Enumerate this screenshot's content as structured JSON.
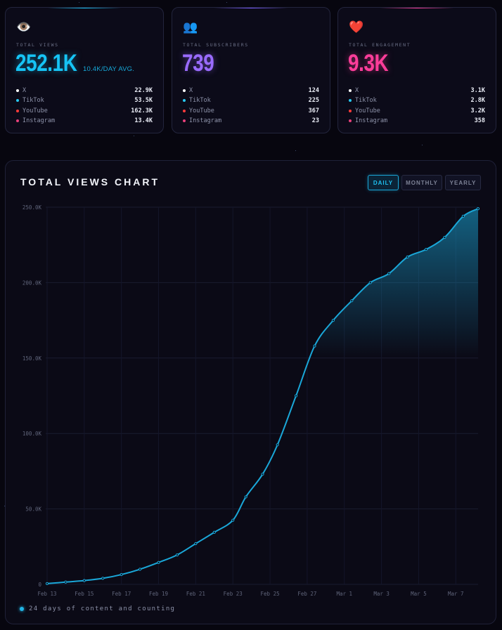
{
  "cards": [
    {
      "icon_name": "eye-icon",
      "icon": "👁️",
      "label": "TOTAL VIEWS",
      "value": "252.1K",
      "avg": "10.4K/DAY AVG.",
      "accent": "#16c4f5",
      "rows": [
        {
          "name": "X",
          "value": "22.9K",
          "color": "#ffffff"
        },
        {
          "name": "TikTok",
          "value": "53.5K",
          "color": "#28c8f0"
        },
        {
          "name": "YouTube",
          "value": "162.3K",
          "color": "#ff3b3b"
        },
        {
          "name": "Instagram",
          "value": "13.4K",
          "color": "#e8407a"
        }
      ]
    },
    {
      "icon_name": "users-icon",
      "icon": "👥",
      "label": "TOTAL SUBSCRIBERS",
      "value": "739",
      "accent": "#9a6bff",
      "rows": [
        {
          "name": "X",
          "value": "124",
          "color": "#ffffff"
        },
        {
          "name": "TikTok",
          "value": "225",
          "color": "#28c8f0"
        },
        {
          "name": "YouTube",
          "value": "367",
          "color": "#ff3b3b"
        },
        {
          "name": "Instagram",
          "value": "23",
          "color": "#e8407a"
        }
      ]
    },
    {
      "icon_name": "heart-icon",
      "icon": "❤️",
      "label": "TOTAL ENGAGEMENT",
      "value": "9.3K",
      "accent": "#ff3d9a",
      "rows": [
        {
          "name": "X",
          "value": "3.1K",
          "color": "#ffffff"
        },
        {
          "name": "TikTok",
          "value": "2.8K",
          "color": "#28c8f0"
        },
        {
          "name": "YouTube",
          "value": "3.2K",
          "color": "#ff3b3b"
        },
        {
          "name": "Instagram",
          "value": "358",
          "color": "#e8407a"
        }
      ]
    }
  ],
  "chart": {
    "title": "TOTAL VIEWS CHART",
    "buttons": [
      "DAILY",
      "MONTHLY",
      "YEARLY"
    ],
    "active_button": "DAILY",
    "footer": "24 days of content and counting",
    "line_color": "#1aa7d8"
  },
  "chart_data": {
    "type": "area",
    "title": "TOTAL VIEWS CHART",
    "xlabel": "",
    "ylabel": "",
    "ylim": [
      0,
      250000
    ],
    "y_ticks": [
      0,
      50000,
      100000,
      150000,
      200000,
      250000
    ],
    "y_tick_labels": [
      "0",
      "50.0K",
      "100.0K",
      "150.0K",
      "200.0K",
      "250.0K"
    ],
    "x_tick_labels": [
      "Feb 13",
      "Feb 15",
      "Feb 17",
      "Feb 19",
      "Feb 21",
      "Feb 23",
      "Feb 25",
      "Feb 27",
      "Mar 1",
      "Mar 3",
      "Mar 5",
      "Mar 7"
    ],
    "x_tick_day_index": [
      0,
      2,
      4,
      6,
      8,
      10,
      12,
      14,
      16,
      18,
      20,
      22
    ],
    "x_max_day_index": 23.2,
    "shade_from_day_index": 14.4,
    "shade_to_value": 150000,
    "series": [
      {
        "name": "Total Views",
        "day_index": [
          0,
          1,
          2,
          3,
          4,
          5,
          6,
          7,
          8,
          9,
          10,
          10.7,
          11.6,
          12.4,
          13.4,
          14.4,
          15.4,
          16.4,
          17.4,
          18.4,
          19.4,
          20.4,
          21.4,
          22.4,
          23.2
        ],
        "values": [
          500,
          1500,
          2500,
          4000,
          6500,
          10000,
          14500,
          19500,
          27000,
          34500,
          42500,
          58000,
          73000,
          92500,
          125000,
          158000,
          175000,
          188000,
          200000,
          206000,
          217000,
          222000,
          230000,
          244000,
          249000
        ]
      }
    ]
  }
}
